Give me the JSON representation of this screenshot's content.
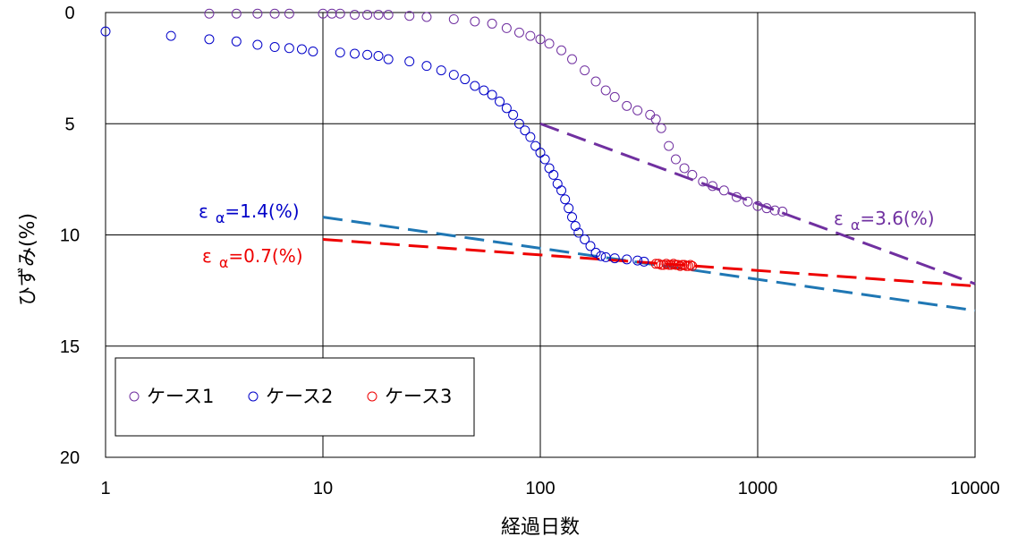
{
  "chart_data": {
    "type": "scatter",
    "xscale": "log",
    "xlim": [
      1,
      10000
    ],
    "ylim": [
      0,
      20
    ],
    "y_inverted": true,
    "grid": true,
    "xlabel": "経過日数",
    "ylabel": "ひずみ(%)",
    "x_ticks": [
      "1",
      "10",
      "100",
      "1000",
      "10000"
    ],
    "y_ticks": [
      "0",
      "5",
      "10",
      "15",
      "20"
    ],
    "legend_position": "bottom-left",
    "series": [
      {
        "name": "ケース1",
        "color": "#7030a0",
        "marker": "open-circle",
        "points": [
          [
            3,
            0.05
          ],
          [
            4,
            0.05
          ],
          [
            5,
            0.05
          ],
          [
            6,
            0.05
          ],
          [
            7,
            0.05
          ],
          [
            10,
            0.05
          ],
          [
            11,
            0.05
          ],
          [
            12,
            0.05
          ],
          [
            14,
            0.1
          ],
          [
            16,
            0.1
          ],
          [
            18,
            0.1
          ],
          [
            20,
            0.1
          ],
          [
            25,
            0.15
          ],
          [
            30,
            0.2
          ],
          [
            40,
            0.3
          ],
          [
            50,
            0.4
          ],
          [
            60,
            0.5
          ],
          [
            70,
            0.7
          ],
          [
            80,
            0.9
          ],
          [
            90,
            1.05
          ],
          [
            100,
            1.2
          ],
          [
            110,
            1.4
          ],
          [
            125,
            1.7
          ],
          [
            140,
            2.1
          ],
          [
            160,
            2.6
          ],
          [
            180,
            3.1
          ],
          [
            200,
            3.5
          ],
          [
            220,
            3.8
          ],
          [
            250,
            4.2
          ],
          [
            280,
            4.4
          ],
          [
            320,
            4.6
          ],
          [
            340,
            4.8
          ],
          [
            360,
            5.2
          ],
          [
            390,
            6.0
          ],
          [
            420,
            6.6
          ],
          [
            460,
            7.0
          ],
          [
            500,
            7.3
          ],
          [
            560,
            7.6
          ],
          [
            620,
            7.8
          ],
          [
            700,
            8.0
          ],
          [
            800,
            8.3
          ],
          [
            900,
            8.5
          ],
          [
            1000,
            8.7
          ],
          [
            1100,
            8.8
          ],
          [
            1200,
            8.9
          ],
          [
            1300,
            8.95
          ]
        ]
      },
      {
        "name": "ケース2",
        "color": "#0000c8",
        "marker": "open-circle",
        "points": [
          [
            1,
            0.85
          ],
          [
            2,
            1.05
          ],
          [
            3,
            1.2
          ],
          [
            4,
            1.3
          ],
          [
            5,
            1.45
          ],
          [
            6,
            1.55
          ],
          [
            7,
            1.6
          ],
          [
            8,
            1.65
          ],
          [
            9,
            1.75
          ],
          [
            12,
            1.8
          ],
          [
            14,
            1.85
          ],
          [
            16,
            1.9
          ],
          [
            18,
            1.95
          ],
          [
            20,
            2.1
          ],
          [
            25,
            2.2
          ],
          [
            30,
            2.4
          ],
          [
            35,
            2.6
          ],
          [
            40,
            2.8
          ],
          [
            45,
            3.0
          ],
          [
            50,
            3.3
          ],
          [
            55,
            3.5
          ],
          [
            60,
            3.7
          ],
          [
            65,
            4.0
          ],
          [
            70,
            4.3
          ],
          [
            75,
            4.6
          ],
          [
            80,
            5.0
          ],
          [
            85,
            5.3
          ],
          [
            90,
            5.6
          ],
          [
            95,
            6.0
          ],
          [
            100,
            6.3
          ],
          [
            105,
            6.6
          ],
          [
            110,
            7.0
          ],
          [
            115,
            7.3
          ],
          [
            120,
            7.7
          ],
          [
            125,
            8.0
          ],
          [
            130,
            8.4
          ],
          [
            135,
            8.8
          ],
          [
            140,
            9.2
          ],
          [
            145,
            9.6
          ],
          [
            150,
            9.9
          ],
          [
            160,
            10.2
          ],
          [
            170,
            10.5
          ],
          [
            180,
            10.8
          ],
          [
            190,
            10.95
          ],
          [
            200,
            11.0
          ],
          [
            220,
            11.05
          ],
          [
            250,
            11.1
          ],
          [
            280,
            11.15
          ],
          [
            300,
            11.2
          ]
        ]
      },
      {
        "name": "ケース3",
        "color": "#ee0000",
        "marker": "open-circle",
        "points": [
          [
            340,
            11.3
          ],
          [
            350,
            11.3
          ],
          [
            360,
            11.35
          ],
          [
            370,
            11.35
          ],
          [
            380,
            11.3
          ],
          [
            390,
            11.35
          ],
          [
            400,
            11.35
          ],
          [
            410,
            11.3
          ],
          [
            420,
            11.35
          ],
          [
            430,
            11.35
          ],
          [
            440,
            11.4
          ],
          [
            450,
            11.35
          ],
          [
            460,
            11.35
          ],
          [
            470,
            11.4
          ],
          [
            480,
            11.4
          ],
          [
            490,
            11.35
          ],
          [
            500,
            11.4
          ]
        ]
      }
    ],
    "fit_lines": [
      {
        "label": "εα=3.6(%)",
        "color": "#7030a0",
        "x": [
          100,
          10000
        ],
        "y": [
          5.0,
          12.2
        ]
      },
      {
        "label": "εα=1.4(%)",
        "color": "#1f77b4",
        "x": [
          10,
          10000
        ],
        "y": [
          9.2,
          13.4
        ]
      },
      {
        "label": "εα=0.7(%)",
        "color": "#ee0000",
        "x": [
          10,
          10000
        ],
        "y": [
          10.2,
          12.3
        ]
      }
    ],
    "annotations": [
      {
        "symbol": "ε",
        "sub": "α",
        "value": "=1.4(%)",
        "color": "#0000c8"
      },
      {
        "symbol": "ε",
        "sub": "α",
        "value": "=0.7(%)",
        "color": "#ee0000"
      },
      {
        "symbol": "ε",
        "sub": "α",
        "value": "=3.6(%)",
        "color": "#7030a0"
      }
    ]
  }
}
